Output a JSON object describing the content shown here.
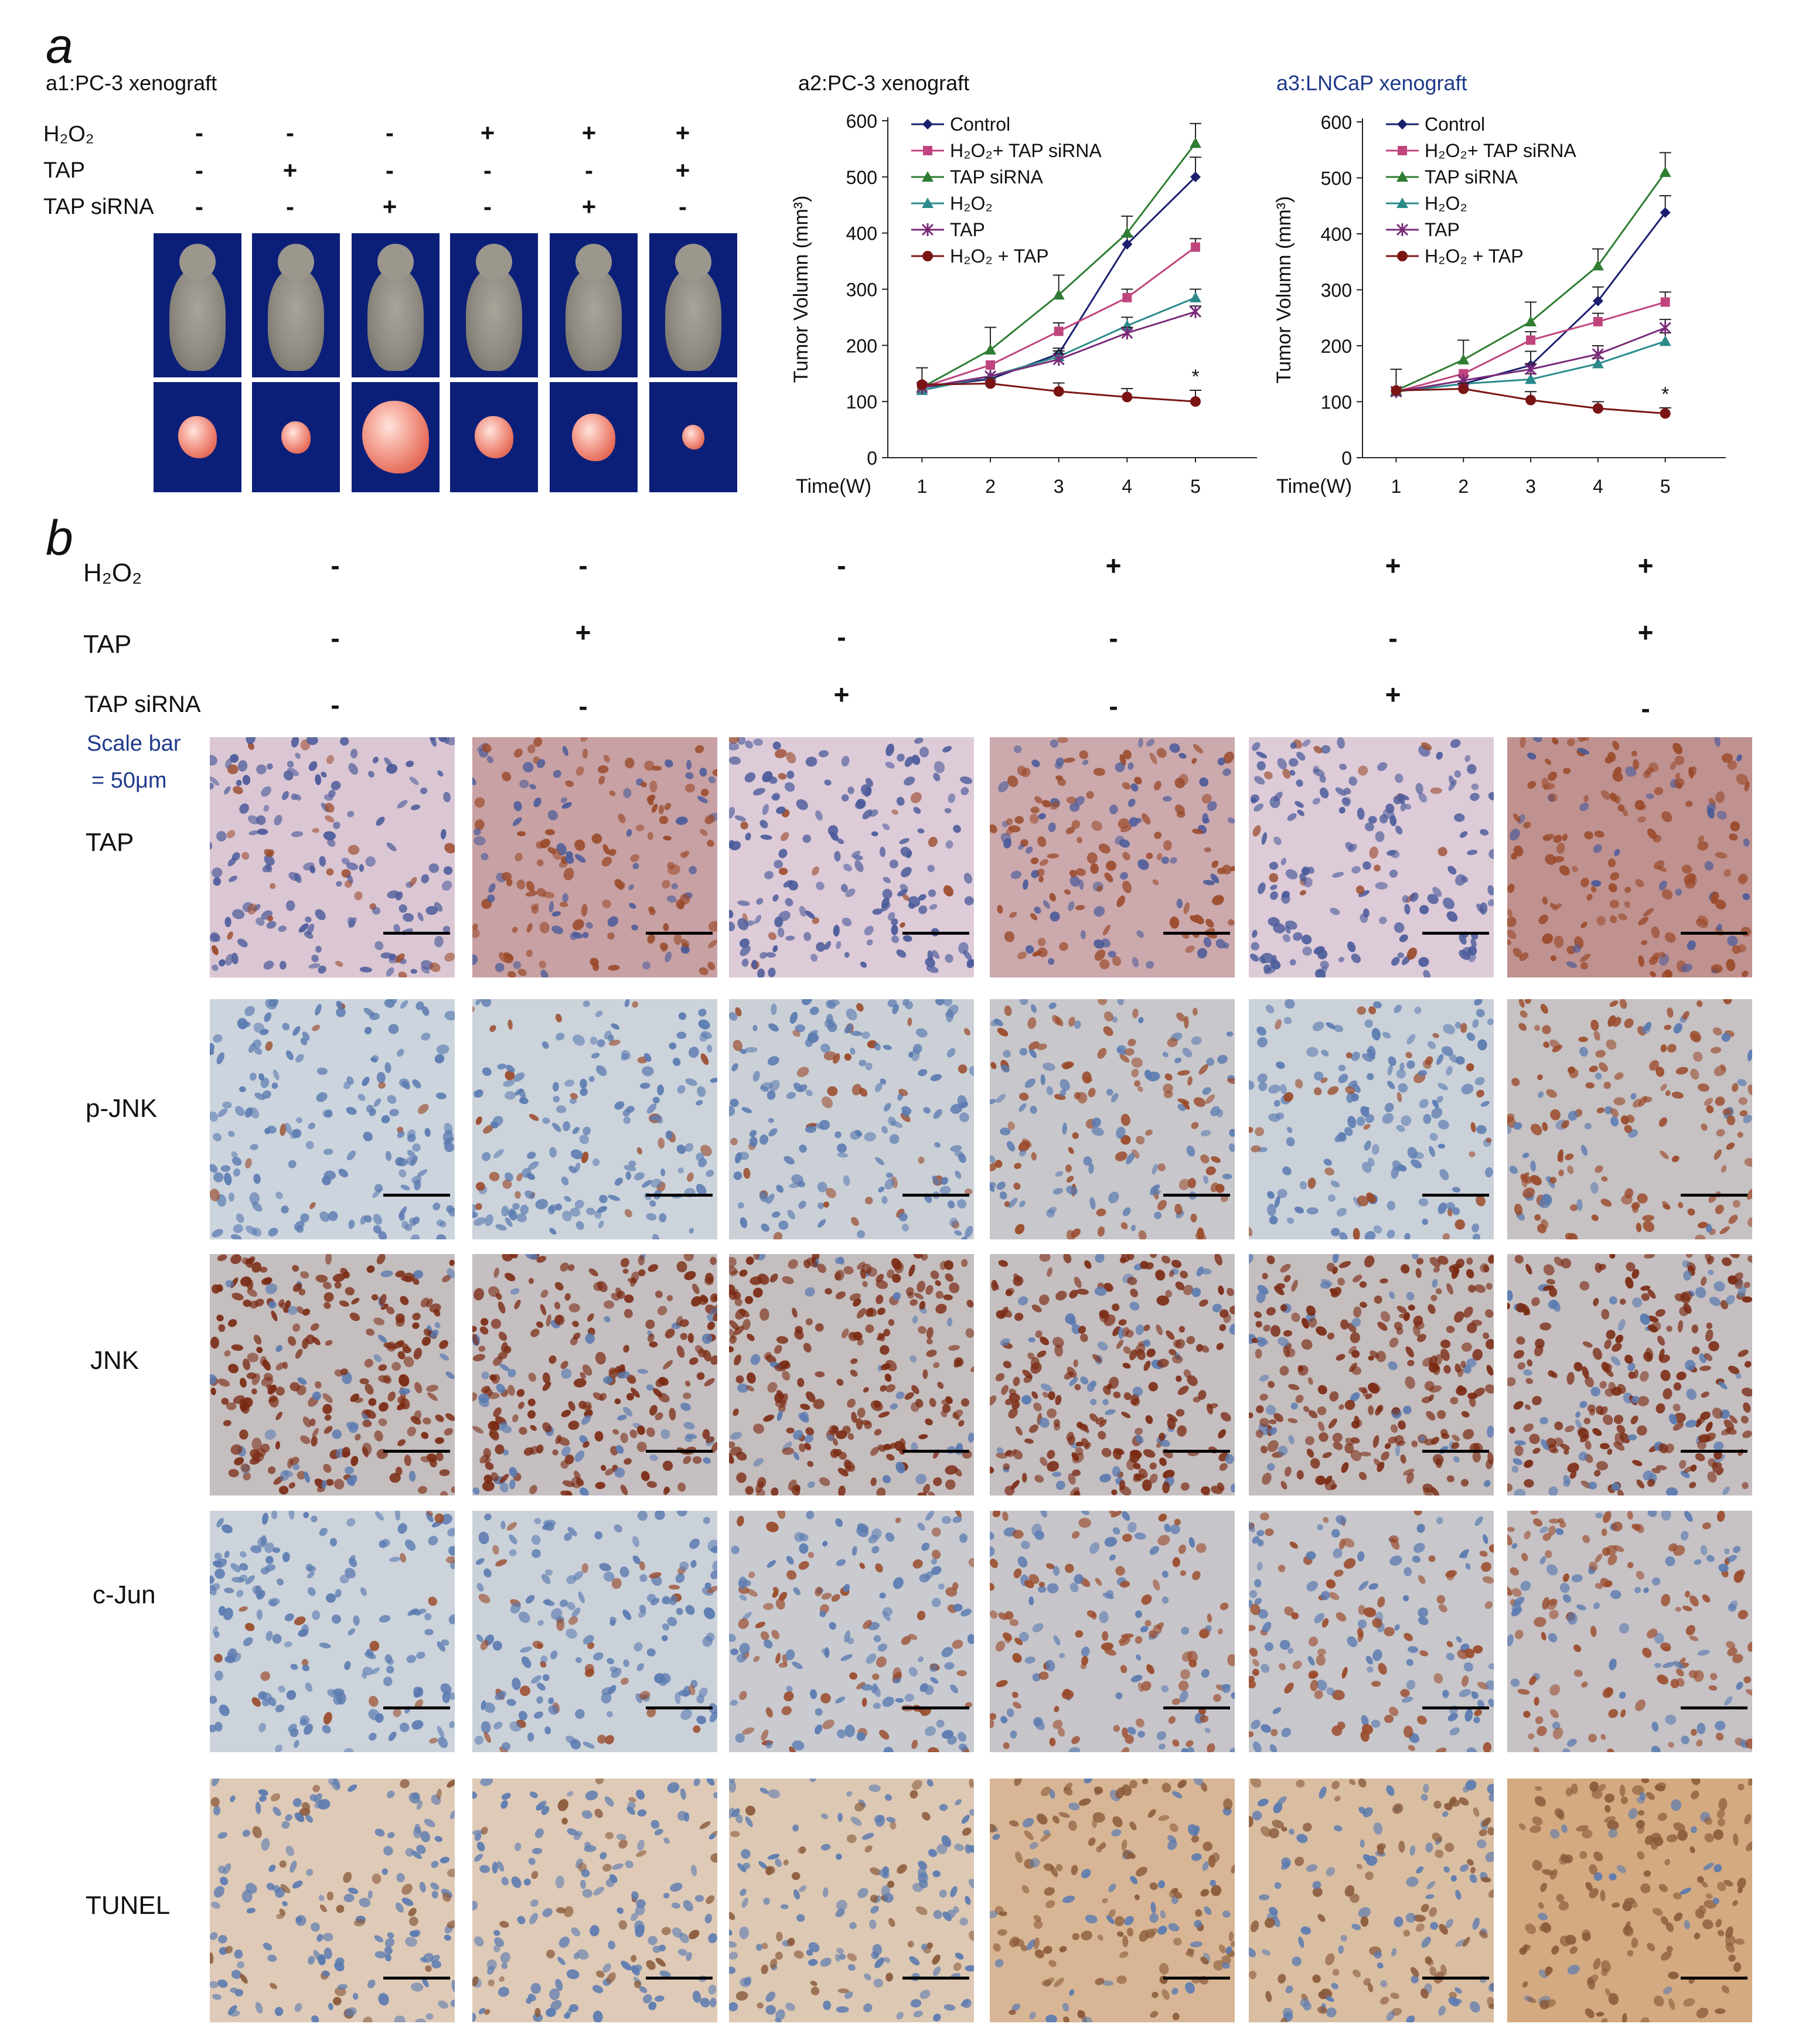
{
  "panel_a": {
    "letter": "a",
    "a1_title": "a1:PC-3 xenograft",
    "condition_labels": {
      "h2o2": "H₂O₂",
      "tap": "TAP",
      "sirna": "TAP siRNA"
    },
    "signs": {
      "h2o2": [
        "-",
        "-",
        "-",
        "+",
        "+",
        "+"
      ],
      "tap": [
        "-",
        "+",
        "-",
        "-",
        "-",
        "+"
      ],
      "sirna": [
        "-",
        "-",
        "+",
        "-",
        "+",
        "-"
      ]
    },
    "tumor_sizes": [
      0.55,
      0.42,
      0.95,
      0.55,
      0.62,
      0.32
    ]
  },
  "panel_b": {
    "letter": "b",
    "condition_labels": {
      "h2o2": "H₂O₂",
      "tap": "TAP",
      "sirna": "TAP siRNA"
    },
    "signs": {
      "h2o2": [
        "-",
        "-",
        "-",
        "+",
        "+",
        "+"
      ],
      "tap": [
        "-",
        "+",
        "-",
        "-",
        "-",
        "+"
      ],
      "sirna": [
        "-",
        "-",
        "+",
        "-",
        "+",
        "-"
      ]
    },
    "scale_note_1": "Scale bar",
    "scale_note_2": "= 50μm",
    "rows": [
      {
        "label": "TAP",
        "stain": [
          0.15,
          0.65,
          0.1,
          0.55,
          0.1,
          0.85
        ]
      },
      {
        "label": "p-JNK",
        "stain": [
          0.1,
          0.15,
          0.25,
          0.55,
          0.2,
          0.75
        ]
      },
      {
        "label": "JNK",
        "stain": [
          0.85,
          0.8,
          0.85,
          0.8,
          0.85,
          0.8
        ]
      },
      {
        "label": "c-Jun",
        "stain": [
          0.15,
          0.2,
          0.4,
          0.6,
          0.55,
          0.7
        ]
      },
      {
        "label": "TUNEL",
        "stain": [
          0.2,
          0.2,
          0.25,
          0.6,
          0.45,
          0.85
        ]
      }
    ]
  },
  "chart_data": [
    {
      "type": "line",
      "title": "a2:PC-3 xenograft",
      "xlabel": "Time(W)",
      "ylabel": "Tumor Volumn (mm³)",
      "x": [
        1,
        2,
        3,
        4,
        5
      ],
      "ylim": [
        0,
        600
      ],
      "yticks": [
        0,
        100,
        200,
        300,
        400,
        500,
        600
      ],
      "legend_position": "top-left",
      "annotation": "*",
      "series": [
        {
          "name": "Control",
          "color": "#1a1f6e",
          "marker": "diamond",
          "values": [
            125,
            140,
            185,
            380,
            500
          ],
          "err": [
            0,
            0,
            10,
            15,
            35
          ]
        },
        {
          "name": "H₂O₂+ TAP siRNA",
          "color": "#c0457e",
          "marker": "square",
          "values": [
            125,
            165,
            225,
            285,
            375
          ],
          "err": [
            0,
            0,
            15,
            15,
            15
          ]
        },
        {
          "name": "TAP siRNA",
          "color": "#2e7d32",
          "marker": "triangle",
          "values": [
            125,
            192,
            290,
            400,
            560
          ],
          "err": [
            0,
            40,
            35,
            30,
            35
          ]
        },
        {
          "name": "H₂O₂",
          "color": "#2b8a8a",
          "marker": "triangle",
          "values": [
            120,
            145,
            180,
            235,
            285
          ],
          "err": [
            0,
            0,
            10,
            15,
            15
          ]
        },
        {
          "name": "TAP",
          "color": "#7a2a7a",
          "marker": "star",
          "values": [
            125,
            145,
            175,
            222,
            260
          ],
          "err": [
            0,
            0,
            10,
            10,
            10
          ]
        },
        {
          "name": "H₂O₂ + TAP",
          "color": "#7a1414",
          "marker": "circle",
          "values": [
            130,
            132,
            118,
            108,
            100
          ],
          "err": [
            30,
            10,
            15,
            15,
            20
          ]
        }
      ]
    },
    {
      "type": "line",
      "title": "a3:LNCaP xenograft",
      "xlabel": "Time(W)",
      "ylabel": "Tumor Volumn (mm³)",
      "x": [
        1,
        2,
        3,
        4,
        5
      ],
      "ylim": [
        0,
        600
      ],
      "yticks": [
        0,
        100,
        200,
        300,
        400,
        500,
        600
      ],
      "legend_position": "top-left",
      "annotation": "*",
      "series": [
        {
          "name": "Control",
          "color": "#1a1f6e",
          "marker": "diamond",
          "values": [
            118,
            132,
            165,
            280,
            438
          ],
          "err": [
            0,
            0,
            25,
            25,
            30
          ]
        },
        {
          "name": "H₂O₂+ TAP siRNA",
          "color": "#c0457e",
          "marker": "square",
          "values": [
            118,
            150,
            210,
            243,
            278
          ],
          "err": [
            0,
            0,
            15,
            15,
            18
          ]
        },
        {
          "name": "TAP siRNA",
          "color": "#2e7d32",
          "marker": "triangle",
          "values": [
            120,
            175,
            243,
            343,
            510
          ],
          "err": [
            0,
            35,
            35,
            30,
            35
          ]
        },
        {
          "name": "H₂O₂",
          "color": "#2b8a8a",
          "marker": "triangle",
          "values": [
            118,
            132,
            140,
            168,
            208
          ],
          "err": [
            0,
            0,
            10,
            10,
            15
          ]
        },
        {
          "name": "TAP",
          "color": "#7a2a7a",
          "marker": "star",
          "values": [
            118,
            138,
            158,
            185,
            232
          ],
          "err": [
            0,
            0,
            10,
            15,
            15
          ]
        },
        {
          "name": "H₂O₂ + TAP",
          "color": "#7a1414",
          "marker": "circle",
          "values": [
            120,
            123,
            103,
            88,
            79
          ],
          "err": [
            38,
            10,
            15,
            12,
            10
          ]
        }
      ]
    }
  ]
}
